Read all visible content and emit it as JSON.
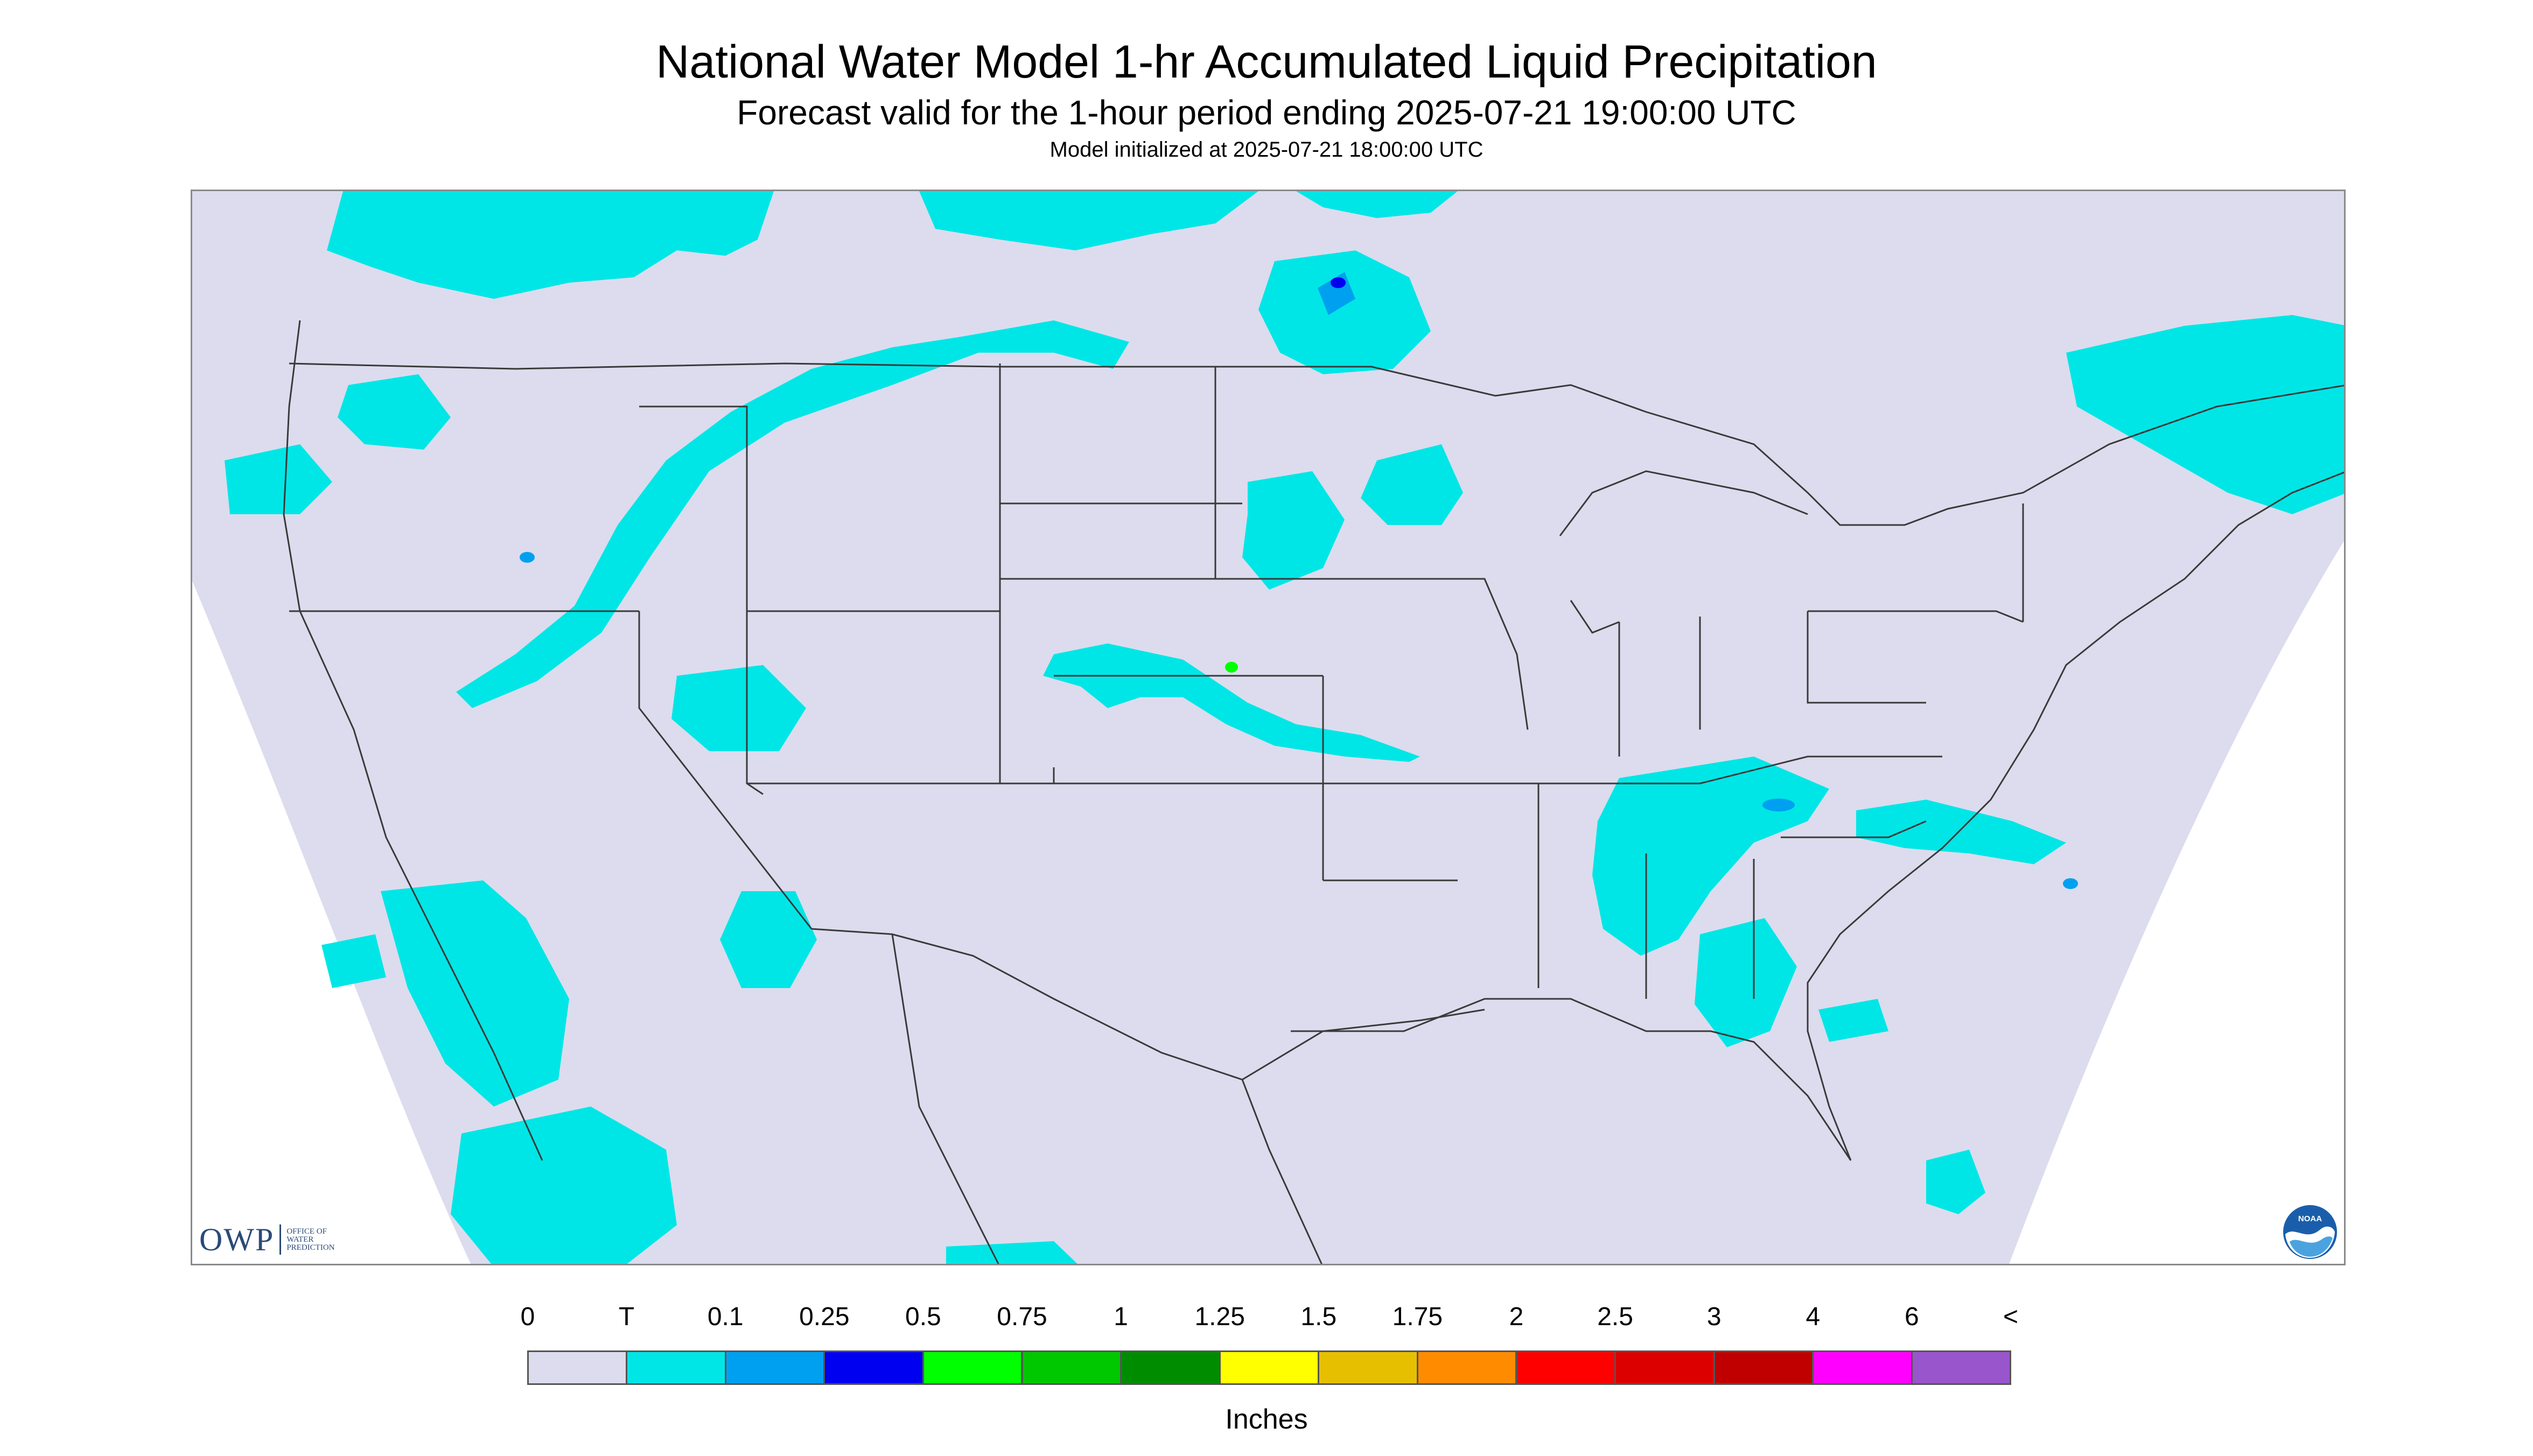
{
  "header": {
    "title": "National Water Model 1-hr Accumulated Liquid Precipitation",
    "subtitle": "Forecast valid for the 1-hour period ending 2025-07-21 19:00:00 UTC",
    "init_line": "Model initialized at 2025-07-21 18:00:00 UTC"
  },
  "logos": {
    "owp_text": "OWP",
    "owp_sub_lines": [
      "OFFICE OF",
      "WATER",
      "PREDICTION"
    ],
    "noaa_text": "NOAA"
  },
  "colors": {
    "no_data": "#ffffff",
    "background_zero": "#dcdcee",
    "state_lines": "#3a3a3a",
    "trace": "#00e6e6",
    "light_blue": "#00a0f0",
    "blue": "#0000f0"
  },
  "legend": {
    "labels": [
      "0",
      "T",
      "0.1",
      "0.25",
      "0.5",
      "0.75",
      "1",
      "1.25",
      "1.5",
      "1.75",
      "2",
      "2.5",
      "3",
      "4",
      "6",
      "<"
    ],
    "colors": [
      "#dcdcee",
      "#00e6e6",
      "#00a0f0",
      "#0000f0",
      "#00ff00",
      "#00c800",
      "#008c00",
      "#ffff00",
      "#e6c000",
      "#ff8c00",
      "#ff0000",
      "#dc0000",
      "#c00000",
      "#ff00ff",
      "#9955cc"
    ],
    "units": "Inches"
  }
}
